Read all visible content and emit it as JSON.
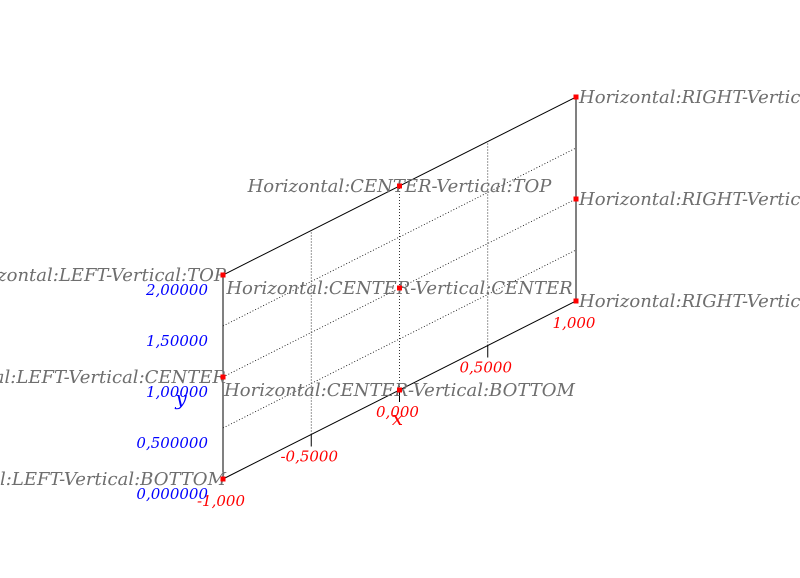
{
  "chart_data": {
    "type": "scatter",
    "title": "",
    "xlabel": "x",
    "ylabel": "y",
    "xlim": [
      -1,
      1
    ],
    "ylim": [
      0,
      2
    ],
    "grid": true,
    "projection": "oblique",
    "x_ticks": [
      {
        "value": -1,
        "label": "-1,000"
      },
      {
        "value": -0.5,
        "label": "-0,5000"
      },
      {
        "value": 0,
        "label": "0,000"
      },
      {
        "value": 0.5,
        "label": "0,5000"
      },
      {
        "value": 1,
        "label": "1,000"
      }
    ],
    "y_ticks": [
      {
        "value": 0,
        "label": "0,000000"
      },
      {
        "value": 0.5,
        "label": "0,500000"
      },
      {
        "value": 1,
        "label": "1,00000"
      },
      {
        "value": 1.5,
        "label": "1,50000"
      },
      {
        "value": 2,
        "label": "2,00000"
      }
    ],
    "points": [
      {
        "x": -1,
        "y": 2,
        "label": "Horizontal:LEFT-Vertical:TOP",
        "anchor": "end"
      },
      {
        "x": -1,
        "y": 1,
        "label": "Horizontal:LEFT-Vertical:CENTER",
        "anchor": "end"
      },
      {
        "x": -1,
        "y": 0,
        "label": "Horizontal:LEFT-Vertical:BOTTOM",
        "anchor": "end"
      },
      {
        "x": 0,
        "y": 2,
        "label": "Horizontal:CENTER-Vertical:TOP",
        "anchor": "middle"
      },
      {
        "x": 0,
        "y": 1,
        "label": "Horizontal:CENTER-Vertical:CENTER",
        "anchor": "middle"
      },
      {
        "x": 0,
        "y": 0,
        "label": "Horizontal:CENTER-Vertical:BOTTOM",
        "anchor": "middle"
      },
      {
        "x": 1,
        "y": 2,
        "label": "Horizontal:RIGHT-Vertical:TOP",
        "anchor": "start"
      },
      {
        "x": 1,
        "y": 1,
        "label": "Horizontal:RIGHT-Vertical:CENTER",
        "anchor": "start"
      },
      {
        "x": 1,
        "y": 0,
        "label": "Horizontal:RIGHT-Vertical:BOTTOM",
        "anchor": "start"
      }
    ]
  },
  "colors": {
    "marker": "#ff0000",
    "x_axis": "#ff0000",
    "y_axis": "#0000ff",
    "label": "#6e6e6e",
    "frame": "#000000"
  }
}
